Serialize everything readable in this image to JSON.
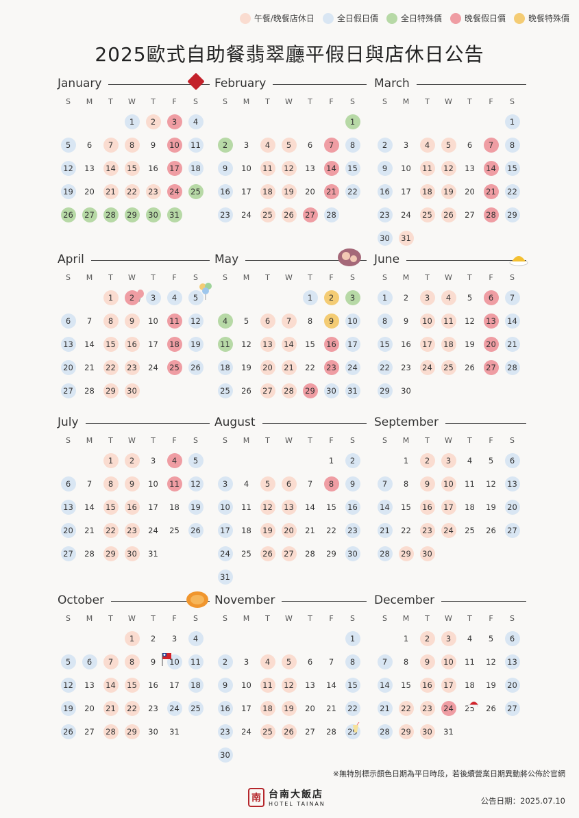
{
  "legend": [
    {
      "label": "午餐/晚餐店休日",
      "color": "#fadcd0"
    },
    {
      "label": "全日假日價",
      "color": "#d9e6f3"
    },
    {
      "label": "全日特殊價",
      "color": "#b7d9a6"
    },
    {
      "label": "晚餐假日價",
      "color": "#ef9da3"
    },
    {
      "label": "晚餐特殊價",
      "color": "#f4cc74"
    }
  ],
  "title": "2025歐式自助餐翡翠廳平假日與店休日公告",
  "weekdays": [
    "S",
    "M",
    "T",
    "W",
    "T",
    "F",
    "S"
  ],
  "months": [
    {
      "name": "January",
      "start": 3,
      "days": 31,
      "lunch": [
        2,
        7,
        8,
        14,
        15,
        21,
        22,
        23
      ],
      "hol": [
        1,
        4,
        5,
        11,
        12,
        18,
        19
      ],
      "allsp": [
        25,
        26,
        27,
        28,
        29,
        30,
        31
      ],
      "dinhol": [
        3,
        10,
        17,
        24
      ],
      "dinsp": []
    },
    {
      "name": "February",
      "start": 6,
      "days": 28,
      "lunch": [
        4,
        5,
        11,
        12,
        18,
        19,
        25,
        26
      ],
      "hol": [
        8,
        9,
        15,
        16,
        22,
        23,
        28
      ],
      "allsp": [
        1,
        2
      ],
      "dinhol": [
        7,
        14,
        21,
        27
      ],
      "dinsp": []
    },
    {
      "name": "March",
      "start": 6,
      "days": 31,
      "lunch": [
        4,
        5,
        11,
        12,
        18,
        19,
        25,
        26,
        31
      ],
      "hol": [
        1,
        2,
        8,
        9,
        15,
        16,
        22,
        23,
        29,
        30
      ],
      "allsp": [],
      "dinhol": [
        7,
        14,
        21,
        28
      ],
      "dinsp": []
    },
    {
      "name": "April",
      "start": 2,
      "days": 30,
      "lunch": [
        1,
        8,
        9,
        15,
        16,
        22,
        23,
        29,
        30
      ],
      "hol": [
        3,
        4,
        5,
        6,
        12,
        13,
        19,
        20,
        26,
        27
      ],
      "allsp": [],
      "dinhol": [
        2,
        11,
        18,
        25
      ],
      "dinsp": []
    },
    {
      "name": "May",
      "start": 4,
      "days": 31,
      "lunch": [
        6,
        7,
        13,
        14,
        20,
        21,
        27,
        28
      ],
      "hol": [
        1,
        10,
        17,
        18,
        24,
        25,
        30,
        31
      ],
      "allsp": [
        3,
        4,
        11
      ],
      "dinhol": [
        16,
        23,
        29
      ],
      "dinsp": [
        2,
        9
      ]
    },
    {
      "name": "June",
      "start": 0,
      "days": 30,
      "lunch": [
        3,
        4,
        10,
        11,
        17,
        18,
        24,
        25
      ],
      "hol": [
        1,
        7,
        8,
        14,
        15,
        21,
        22,
        28,
        29
      ],
      "allsp": [],
      "dinhol": [
        6,
        13,
        20,
        27
      ],
      "dinsp": []
    },
    {
      "name": "July",
      "start": 2,
      "days": 31,
      "lunch": [
        1,
        2,
        8,
        9,
        15,
        16,
        22,
        23,
        29,
        30
      ],
      "hol": [
        5,
        6,
        12,
        13,
        19,
        20,
        26,
        27
      ],
      "allsp": [],
      "dinhol": [
        4,
        11
      ],
      "dinsp": []
    },
    {
      "name": "August",
      "start": 5,
      "days": 31,
      "lunch": [
        5,
        6,
        12,
        13,
        19,
        20,
        26,
        27
      ],
      "hol": [
        2,
        3,
        9,
        10,
        16,
        17,
        23,
        24,
        30,
        31
      ],
      "allsp": [],
      "dinhol": [
        8
      ],
      "dinsp": []
    },
    {
      "name": "September",
      "start": 1,
      "days": 30,
      "lunch": [
        2,
        3,
        9,
        10,
        16,
        17,
        23,
        24,
        29,
        30
      ],
      "hol": [
        6,
        7,
        13,
        14,
        20,
        21,
        27,
        28
      ],
      "allsp": [],
      "dinhol": [],
      "dinsp": []
    },
    {
      "name": "October",
      "start": 3,
      "days": 31,
      "lunch": [
        1,
        7,
        8,
        14,
        15,
        21,
        22,
        28,
        29
      ],
      "hol": [
        4,
        5,
        6,
        10,
        11,
        12,
        18,
        19,
        24,
        25,
        26
      ],
      "allsp": [],
      "dinhol": [],
      "dinsp": []
    },
    {
      "name": "November",
      "start": 6,
      "days": 30,
      "lunch": [
        4,
        5,
        11,
        12,
        18,
        19,
        25,
        26
      ],
      "hol": [
        1,
        2,
        8,
        9,
        15,
        16,
        22,
        23,
        29,
        30
      ],
      "allsp": [],
      "dinhol": [],
      "dinsp": []
    },
    {
      "name": "December",
      "start": 1,
      "days": 31,
      "lunch": [
        2,
        3,
        9,
        10,
        16,
        17,
        22,
        23,
        29,
        30
      ],
      "hol": [
        6,
        7,
        13,
        14,
        20,
        21,
        27,
        28
      ],
      "allsp": [],
      "dinhol": [
        24
      ],
      "dinsp": []
    }
  ],
  "footnote": "※無特別標示顏色日期為平日時段，若後續營業日期異動將公佈於官網",
  "logo": {
    "cn": "台南大飯店",
    "en": "HOTEL TAINAN",
    "mark": "南"
  },
  "announce_date": "公告日期：2025.07.10"
}
